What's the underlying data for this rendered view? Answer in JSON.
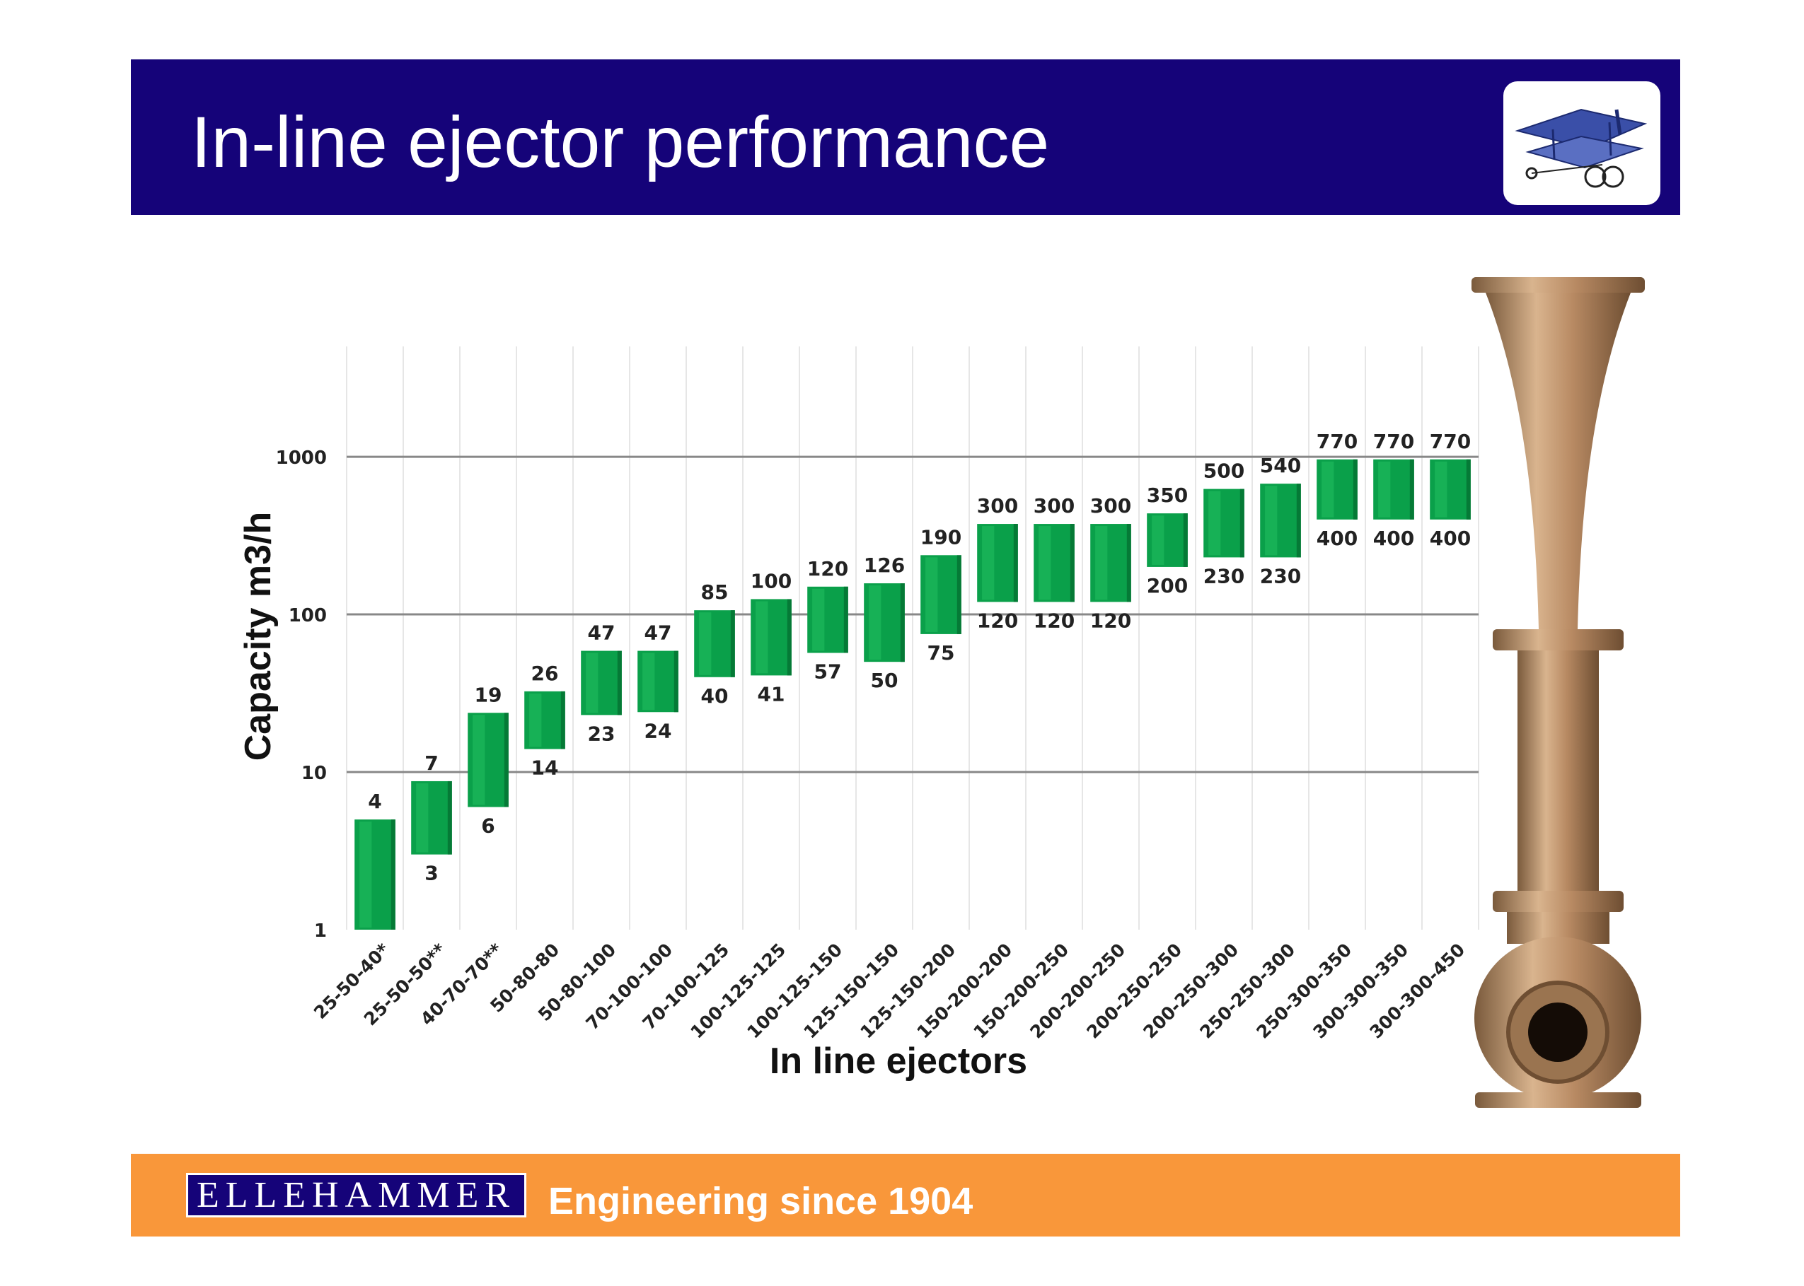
{
  "header": {
    "title": "In-line ejector performance",
    "logo_icon": "airplane-logo-icon"
  },
  "footer": {
    "brand": "ELLEHAMMER",
    "tagline": "Engineering since 1904"
  },
  "colors": {
    "header_bg": "#150379",
    "footer_bg": "#f9973a",
    "bar_fill": "#0aa04a",
    "bar_highlight": "#22c060",
    "bar_shadow": "#057a36",
    "gridline": "#888888"
  },
  "illustration": {
    "name": "in-line-ejector-photo"
  },
  "chart_data": {
    "type": "bar",
    "subtype": "floating-range",
    "title": "",
    "xlabel": "In line ejectors",
    "ylabel": "Capacity m3/h",
    "y_scale": "log10",
    "ylim": [
      1,
      1000
    ],
    "yticks": [
      "1",
      "10",
      "100",
      "1000"
    ],
    "grid": true,
    "legend": "none",
    "categories": [
      "25-50-40*",
      "25-50-50**",
      "40-70-70**",
      "50-80-80",
      "50-80-100",
      "70-100-100",
      "70-100-125",
      "100-125-125",
      "100-125-150",
      "125-150-150",
      "125-150-200",
      "150-200-200",
      "150-200-250",
      "200-200-250",
      "200-250-250",
      "200-250-300",
      "250-250-300",
      "250-300-350",
      "300-300-350",
      "300-300-450"
    ],
    "series": [
      {
        "values_min": [
          1,
          3,
          6,
          14,
          23,
          24,
          40,
          41,
          57,
          50,
          75,
          120,
          120,
          120,
          200,
          230,
          230,
          400,
          400,
          400
        ],
        "values_max": [
          4,
          7,
          19,
          26,
          47,
          47,
          85,
          100,
          120,
          126,
          190,
          300,
          300,
          300,
          350,
          500,
          540,
          770,
          770,
          770
        ]
      }
    ],
    "labels_min": [
      "",
      "3",
      "6",
      "14",
      "23",
      "24",
      "40",
      "41",
      "57",
      "50",
      "75",
      "120",
      "120",
      "120",
      "200",
      "230",
      "230",
      "400",
      "400",
      "400"
    ],
    "labels_max": [
      "4",
      "7",
      "19",
      "26",
      "47",
      "47",
      "85",
      "100",
      "120",
      "126",
      "190",
      "300",
      "300",
      "300",
      "350",
      "500",
      "540",
      "770",
      "770",
      "770"
    ]
  }
}
